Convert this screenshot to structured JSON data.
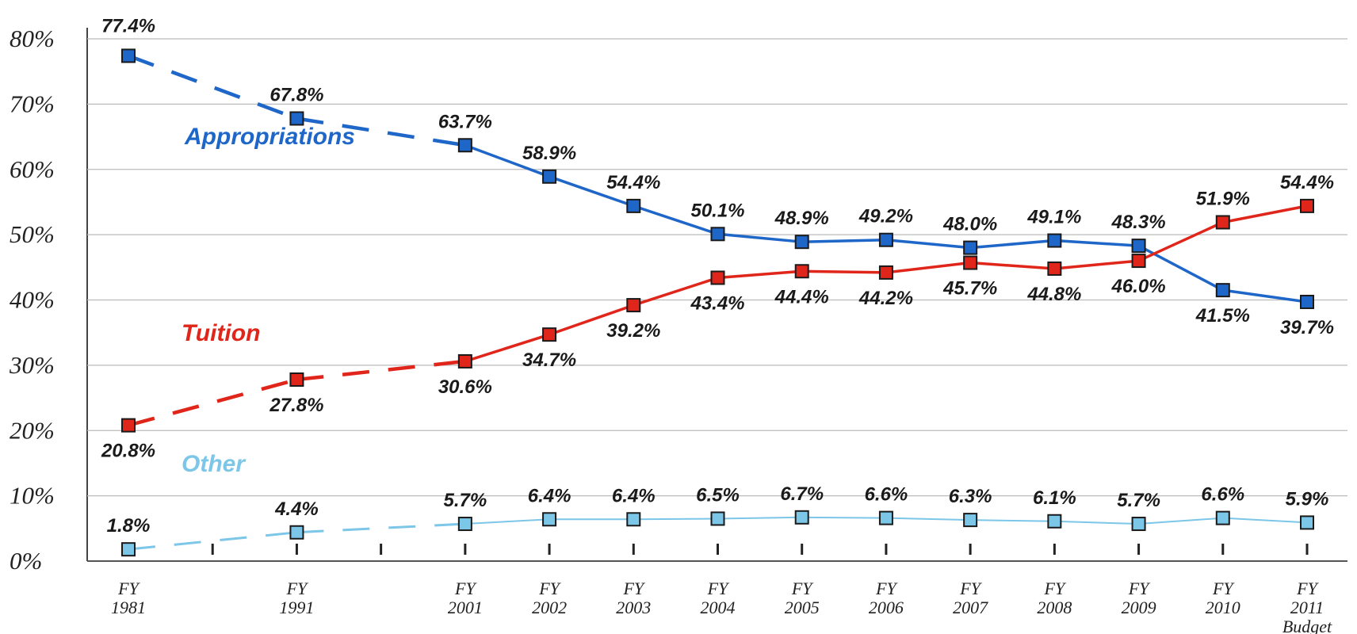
{
  "chart_data": {
    "type": "line",
    "categories": [
      [
        "FY",
        "1981"
      ],
      null,
      [
        "FY",
        "1991"
      ],
      null,
      [
        "FY",
        "2001"
      ],
      [
        "FY",
        "2002"
      ],
      [
        "FY",
        "2003"
      ],
      [
        "FY",
        "2004"
      ],
      [
        "FY",
        "2005"
      ],
      [
        "FY",
        "2006"
      ],
      [
        "FY",
        "2007"
      ],
      [
        "FY",
        "2008"
      ],
      [
        "FY",
        "2009"
      ],
      [
        "FY",
        "2010"
      ],
      [
        "FY",
        "2011",
        "Budget"
      ]
    ],
    "series": [
      {
        "name": "Appropriations",
        "color": "#1e66c8",
        "values": [
          77.4,
          null,
          67.8,
          null,
          63.7,
          58.9,
          54.4,
          50.1,
          48.9,
          49.2,
          48.0,
          49.1,
          48.3,
          41.5,
          39.7
        ],
        "value_labels": [
          "77.4%",
          null,
          "67.8%",
          null,
          "63.7%",
          "58.9%",
          "54.4%",
          "50.1%",
          "48.9%",
          "49.2%",
          "48.0%",
          "49.1%",
          "48.3%",
          "41.5%",
          "39.7%"
        ]
      },
      {
        "name": "Tuition",
        "color": "#e0261a",
        "values": [
          20.8,
          null,
          27.8,
          null,
          30.6,
          34.7,
          39.2,
          43.4,
          44.4,
          44.2,
          45.7,
          44.8,
          46.0,
          51.9,
          54.4
        ],
        "value_labels": [
          "20.8%",
          null,
          "27.8%",
          null,
          "30.6%",
          "34.7%",
          "39.2%",
          "43.4%",
          "44.4%",
          "44.2%",
          "45.7%",
          "44.8%",
          "46.0%",
          "51.9%",
          "54.4%"
        ]
      },
      {
        "name": "Other",
        "color": "#7cc6e8",
        "values": [
          1.8,
          null,
          4.4,
          null,
          5.7,
          6.4,
          6.4,
          6.5,
          6.7,
          6.6,
          6.3,
          6.1,
          5.7,
          6.6,
          5.9
        ],
        "value_labels": [
          "1.8%",
          null,
          "4.4%",
          null,
          "5.7%",
          "6.4%",
          "6.4%",
          "6.5%",
          "6.7%",
          "6.6%",
          "6.3%",
          "6.1%",
          "5.7%",
          "6.6%",
          "5.9%"
        ]
      }
    ],
    "ylim": [
      0,
      80
    ],
    "yticks": [
      {
        "value": 0,
        "label": "0%"
      },
      {
        "value": 10,
        "label": "10%"
      },
      {
        "value": 20,
        "label": "20%"
      },
      {
        "value": 30,
        "label": "30%"
      },
      {
        "value": 40,
        "label": "40%"
      },
      {
        "value": 50,
        "label": "50%"
      },
      {
        "value": 60,
        "label": "60%"
      },
      {
        "value": 70,
        "label": "70%"
      },
      {
        "value": 80,
        "label": "80%"
      }
    ],
    "grid": true
  }
}
